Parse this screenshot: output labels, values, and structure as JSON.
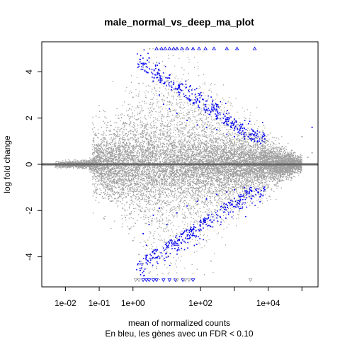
{
  "chart_data": {
    "type": "scatter",
    "title": "male_normal_vs_deep_ma_plot",
    "xlabel": "mean of normalized counts",
    "ylabel": "log fold change",
    "subtitle": "En bleu, les gènes avec un FDR < 0.10",
    "x_scale": "log",
    "xlim": [
      0.002,
      300000
    ],
    "ylim": [
      -5.3,
      5.3
    ],
    "x_ticks": [
      {
        "value": 0.01,
        "label": "1e-02"
      },
      {
        "value": 0.1,
        "label": "1e-01"
      },
      {
        "value": 1,
        "label": "1e+00"
      },
      {
        "value": 100,
        "label": "1e+02"
      },
      {
        "value": 10000,
        "label": "1e+04"
      }
    ],
    "x_minor_ticks": [
      1000,
      100000
    ],
    "y_ticks": [
      {
        "value": -4,
        "label": "-4"
      },
      {
        "value": -2,
        "label": "-2"
      },
      {
        "value": 0,
        "label": "0"
      },
      {
        "value": 2,
        "label": "2"
      },
      {
        "value": 4,
        "label": "4"
      }
    ],
    "hline": 0,
    "grid": false,
    "legend": "none",
    "colors": {
      "not_significant": "#9e9e9e",
      "significant": "#0000ee",
      "zero_line": "#666666"
    },
    "series": [
      {
        "name": "",
        "color": "#9e9e9e",
        "note_on_density": "dense cloud; representative sample",
        "points": [
          [
            0.02,
            0.1
          ],
          [
            0.03,
            0.1
          ],
          [
            0.05,
            0.12
          ],
          [
            0.08,
            0.15
          ],
          [
            0.1,
            0.2
          ],
          [
            0.02,
            -0.1
          ],
          [
            0.04,
            -0.15
          ],
          [
            0.06,
            -0.2
          ],
          [
            0.09,
            -0.3
          ],
          [
            0.12,
            -0.4
          ],
          [
            0.2,
            0.5
          ],
          [
            0.3,
            0.8
          ],
          [
            0.4,
            1.1
          ],
          [
            0.5,
            1.4
          ],
          [
            0.6,
            1.8
          ],
          [
            0.8,
            2.4
          ],
          [
            1.0,
            2.9
          ],
          [
            1.5,
            3.5
          ],
          [
            0.2,
            -0.6
          ],
          [
            0.3,
            -1.0
          ],
          [
            0.4,
            -1.4
          ],
          [
            0.5,
            -1.9
          ],
          [
            0.6,
            -2.3
          ],
          [
            0.8,
            -2.8
          ],
          [
            1.0,
            -3.3
          ],
          [
            1.5,
            -3.9
          ],
          [
            2,
            4.2
          ],
          [
            3,
            4.6
          ],
          [
            5,
            4.4
          ],
          [
            10,
            3.6
          ],
          [
            20,
            3.1
          ],
          [
            50,
            2.6
          ],
          [
            100,
            2.2
          ],
          [
            500,
            1.7
          ],
          [
            2000,
            1.3
          ],
          [
            10000,
            1.0
          ],
          [
            50000,
            0.6
          ],
          [
            2,
            -4.3
          ],
          [
            3,
            -4.7
          ],
          [
            5,
            -4.5
          ],
          [
            10,
            -3.8
          ],
          [
            20,
            -3.2
          ],
          [
            50,
            -2.7
          ],
          [
            100,
            -2.3
          ],
          [
            500,
            -1.8
          ],
          [
            2000,
            -1.4
          ],
          [
            10000,
            -1.0
          ],
          [
            50000,
            -0.6
          ],
          [
            1,
            0.5
          ],
          [
            5,
            0.4
          ],
          [
            20,
            0.3
          ],
          [
            100,
            0.2
          ],
          [
            1000,
            0.15
          ],
          [
            10000,
            0.1
          ],
          [
            1,
            -0.5
          ],
          [
            5,
            -0.4
          ],
          [
            20,
            -0.3
          ],
          [
            100,
            -0.2
          ],
          [
            1000,
            -0.15
          ],
          [
            10000,
            -0.1
          ],
          [
            200000,
            0.5
          ],
          [
            150000,
            0.3
          ],
          [
            100000,
            1.2
          ]
        ]
      },
      {
        "name": "",
        "color": "#0000ee",
        "points": [
          [
            2,
            4.3
          ],
          [
            2.5,
            4.0
          ],
          [
            3,
            4.6
          ],
          [
            4,
            3.6
          ],
          [
            6,
            3.0
          ],
          [
            8,
            2.6
          ],
          [
            12,
            2.4
          ],
          [
            20,
            2.2
          ],
          [
            40,
            1.9
          ],
          [
            80,
            1.7
          ],
          [
            150,
            1.6
          ],
          [
            300,
            1.5
          ],
          [
            600,
            1.3
          ],
          [
            1000,
            1.2
          ],
          [
            2000,
            1.1
          ],
          [
            4000,
            1.0
          ],
          [
            8000,
            1.1
          ],
          [
            50,
            3.4
          ],
          [
            120,
            2.8
          ],
          [
            300,
            2.5
          ],
          [
            1000,
            1.8
          ],
          [
            3000,
            1.3
          ],
          [
            6000,
            0.9
          ],
          [
            200000,
            1.6
          ],
          [
            2,
            -3.0
          ],
          [
            2.5,
            -3.5
          ],
          [
            3,
            -2.6
          ],
          [
            4,
            -2.2
          ],
          [
            6,
            -1.9
          ],
          [
            10,
            -2.6
          ],
          [
            20,
            -2.1
          ],
          [
            40,
            -1.8
          ],
          [
            80,
            -1.6
          ],
          [
            150,
            -1.5
          ],
          [
            300,
            -1.3
          ],
          [
            600,
            -1.2
          ],
          [
            1000,
            -1.1
          ],
          [
            2000,
            -1.0
          ],
          [
            5000,
            -1.2
          ],
          [
            10,
            -3.6
          ],
          [
            30,
            -3.0
          ],
          [
            100,
            -2.5
          ],
          [
            500,
            -1.7
          ],
          [
            1500,
            -1.4
          ],
          [
            3000,
            -1.0
          ],
          [
            8000,
            -1.1
          ]
        ]
      },
      {
        "name": "",
        "color": "#0000ee",
        "marker": "triangle-up",
        "points": [
          [
            5,
            5
          ],
          [
            7,
            5
          ],
          [
            9,
            5
          ],
          [
            12,
            5
          ],
          [
            16,
            5
          ],
          [
            20,
            5
          ],
          [
            28,
            5
          ],
          [
            40,
            5
          ],
          [
            60,
            5
          ],
          [
            90,
            5
          ],
          [
            140,
            5
          ],
          [
            250,
            5
          ],
          [
            600,
            5
          ],
          [
            1200,
            5
          ],
          [
            4000,
            5
          ]
        ]
      },
      {
        "name": "",
        "color": "#0000ee",
        "marker": "triangle-down",
        "points": [
          [
            2,
            -5
          ],
          [
            2.5,
            -5
          ],
          [
            3,
            -5
          ],
          [
            4,
            -5
          ],
          [
            5,
            -5
          ],
          [
            8,
            -5
          ],
          [
            12,
            -5
          ],
          [
            18,
            -5
          ],
          [
            30,
            -5
          ],
          [
            60,
            -5
          ]
        ]
      },
      {
        "name": "",
        "color": "#9e9e9e",
        "marker": "triangle-down",
        "points": [
          [
            1.2,
            -5
          ],
          [
            1.5,
            -5
          ],
          [
            20,
            -5
          ],
          [
            35,
            -5
          ],
          [
            45,
            -5
          ],
          [
            3000,
            -5
          ]
        ]
      }
    ]
  }
}
